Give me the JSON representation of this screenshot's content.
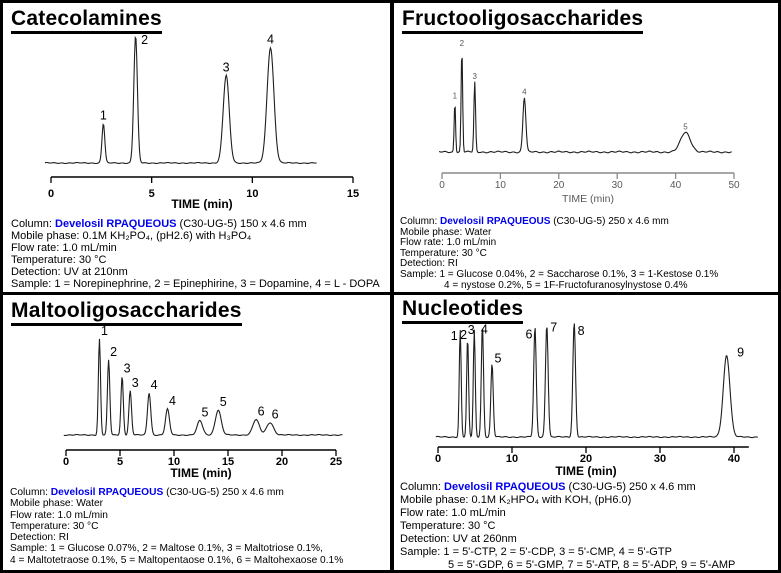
{
  "colors": {
    "brand_blue": "#0000ee",
    "text": "#000000",
    "trace": "#1f1f1f",
    "muted_axis": "#595959"
  },
  "panels": [
    {
      "title": "Catecolamines",
      "conditions": {
        "column_label": "Column: ",
        "column_brand": "Develosil RPAQUEOUS",
        "column_rest": " (C30-UG-5) 150 x 4.6 mm",
        "mobile_phase": "Mobile phase: 0.1M KH₂PO₄, (pH2.6) with H₃PO₄",
        "flow_rate": "Flow rate: 1.0 mL/min",
        "temperature": "Temperature: 30 °C",
        "detection": "Detection: UV at 210nm",
        "sample_lines": [
          "Sample: 1 = Norepinephrine, 2 = Epinephirine, 3 = Dopamine, 4 = L - DOPA"
        ]
      }
    },
    {
      "title": "Fructooligosaccharides",
      "conditions": {
        "column_label": "Column: ",
        "column_brand": "Develosil RPAQUEOUS",
        "column_rest": " (C30-UG-5) 250 x 4.6 mm",
        "mobile_phase": "Mobile phase: Water",
        "flow_rate": "Flow rate: 1.0 mL/min",
        "temperature": "Temperature: 30 °C",
        "detection": "Detection: RI",
        "sample_lines": [
          "Sample: 1 = Glucose 0.04%, 2 = Saccharose 0.1%, 3 = 1-Kestose 0.1%",
          "4 =  nystose 0.2%, 5 = 1F-Fructofuranosylnystose 0.4%"
        ]
      }
    },
    {
      "title": "Maltooligosaccharides",
      "conditions": {
        "column_label": "Column: ",
        "column_brand": "Develosil RPAQUEOUS",
        "column_rest": " (C30-UG-5) 250 x 4.6 mm",
        "mobile_phase": "Mobile phase: Water",
        "flow_rate": "Flow rate: 1.0 mL/min",
        "temperature": "Temperature: 30 °C",
        "detection": "Detection: RI",
        "sample_lines": [
          "Sample: 1 = Glucose 0.07%, 2 = Maltose 0.1%, 3 = Maltotriose 0.1%,",
          "4 = Maltotetraose 0.1%, 5 = Maltopentaose 0.1%, 6 = Maltohexaose 0.1%"
        ]
      }
    },
    {
      "title": "Nucleotides",
      "conditions": {
        "column_label": "Column: ",
        "column_brand": "Develosil RPAQUEOUS",
        "column_rest": " (C30-UG-5) 250 x 4.6 mm",
        "mobile_phase": "Mobile phase: 0.1M K₂HPO₄ with KOH, (pH6.0)",
        "flow_rate": "Flow rate: 1.0 mL/min",
        "temperature": "Temperature: 30 °C",
        "detection": "Detection: UV at 260nm",
        "sample_lines": [
          "Sample: 1 = 5'-CTP, 2 = 5'-CDP, 3 = 5'-CMP, 4 = 5'-GTP",
          "5 = 5'-GDP, 6 = 5'-GMP, 7 = 5'-ATP, 8 = 5'-ADP, 9 = 5'-AMP"
        ]
      }
    }
  ],
  "chart_data": [
    {
      "type": "line",
      "title": "Catecolamines",
      "xlabel": "TIME (min)",
      "xlim": [
        0,
        15
      ],
      "xticks": [
        0,
        5,
        10,
        15
      ],
      "grid": false,
      "legend": "none",
      "y_units": "relative detector response (unlabeled axis)",
      "peaks": [
        {
          "label": "1",
          "time": 2.6,
          "height": 0.31,
          "sigma": 0.07,
          "compound": "Norepinephrine"
        },
        {
          "label": "2",
          "time": 4.2,
          "height": 1.0,
          "sigma": 0.09,
          "compound": "Epinephirine",
          "label_dx": 9,
          "label_dy": 12
        },
        {
          "label": "3",
          "time": 8.7,
          "height": 0.69,
          "sigma": 0.15,
          "compound": "Dopamine"
        },
        {
          "label": "4",
          "time": 10.9,
          "height": 0.91,
          "sigma": 0.17,
          "compound": "L - DOPA"
        }
      ]
    },
    {
      "type": "line",
      "title": "Fructooligosaccharides",
      "xlabel": "TIME (min)",
      "xlim": [
        0,
        50
      ],
      "xticks": [
        0,
        10,
        20,
        30,
        40,
        50
      ],
      "grid": false,
      "legend": "none",
      "y_units": "relative detector response (unlabeled axis)",
      "peaks": [
        {
          "label": "1",
          "time": 2.2,
          "height": 0.49,
          "sigma": 0.12,
          "compound": "Glucose 0.04%"
        },
        {
          "label": "2",
          "time": 3.4,
          "height": 1.0,
          "sigma": 0.13,
          "compound": "Saccharose 0.1%"
        },
        {
          "label": "3",
          "time": 5.6,
          "height": 0.68,
          "sigma": 0.14,
          "compound": "1-Kestose 0.1%"
        },
        {
          "label": "4",
          "time": 14.1,
          "height": 0.53,
          "sigma": 0.25,
          "compound": "nystose 0.2%"
        },
        {
          "label": "5",
          "time": 41.7,
          "height": 0.19,
          "sigma": 0.85,
          "compound": "1F-Fructofuranosylnystose 0.4%"
        }
      ]
    },
    {
      "type": "line",
      "title": "Maltooligosaccharides",
      "xlabel": "TIME (min)",
      "xlim": [
        0,
        25
      ],
      "xticks": [
        0,
        5,
        10,
        15,
        20,
        25
      ],
      "grid": false,
      "legend": "none",
      "y_units": "relative detector response (unlabeled axis)",
      "peaks": [
        {
          "label": "1",
          "time": 3.1,
          "height": 1.0,
          "sigma": 0.1,
          "compound": "Glucose 0.07%"
        },
        {
          "label": "2",
          "time": 3.95,
          "height": 0.78,
          "sigma": 0.11,
          "compound": "Maltose 0.1%"
        },
        {
          "label": "3",
          "time": 5.2,
          "height": 0.61,
          "sigma": 0.11,
          "compound": "Maltotriose 0.1%"
        },
        {
          "label": "3",
          "time": 5.95,
          "height": 0.46,
          "sigma": 0.12,
          "compound": "Maltotriose 0.1%"
        },
        {
          "label": "4",
          "time": 7.7,
          "height": 0.44,
          "sigma": 0.15,
          "compound": "Maltotetraose 0.1%"
        },
        {
          "label": "4",
          "time": 9.4,
          "height": 0.27,
          "sigma": 0.18,
          "compound": "Maltotetraose 0.1%"
        },
        {
          "label": "5",
          "time": 12.4,
          "height": 0.15,
          "sigma": 0.25,
          "compound": "Maltopentaose 0.1%"
        },
        {
          "label": "5",
          "time": 14.1,
          "height": 0.26,
          "sigma": 0.27,
          "compound": "Maltopentaose 0.1%"
        },
        {
          "label": "6",
          "time": 17.6,
          "height": 0.16,
          "sigma": 0.3,
          "compound": "Maltohexaose 0.1%"
        },
        {
          "label": "6",
          "time": 18.9,
          "height": 0.13,
          "sigma": 0.32,
          "compound": "Maltohexaose 0.1%"
        }
      ]
    },
    {
      "type": "line",
      "title": "Nucleotides",
      "xlabel": "TIME (min)",
      "xlim": [
        0,
        40
      ],
      "xticks": [
        0,
        10,
        20,
        30,
        40
      ],
      "grid": false,
      "legend": "none",
      "y_units": "relative detector response (unlabeled axis)",
      "peaks": [
        {
          "label": "1",
          "time": 3.0,
          "height": 0.93,
          "sigma": 0.13,
          "compound": "5'-CTP",
          "label_dx": -6,
          "label_dy": 14
        },
        {
          "label": "2",
          "time": 4.0,
          "height": 0.86,
          "sigma": 0.13,
          "compound": "5'-CDP",
          "label_dx": -4,
          "label_dy": 5
        },
        {
          "label": "3",
          "time": 4.9,
          "height": 0.93,
          "sigma": 0.13,
          "compound": "5'-CMP",
          "label_dx": -3,
          "label_dy": 8
        },
        {
          "label": "4",
          "time": 6.0,
          "height": 0.97,
          "sigma": 0.15,
          "compound": "5'-GTP",
          "label_dx": 2,
          "label_dy": 12
        },
        {
          "label": "5",
          "time": 7.3,
          "height": 0.64,
          "sigma": 0.16,
          "compound": "5'-GDP",
          "label_dx": 6,
          "label_dy": 3
        },
        {
          "label": "6",
          "time": 13.1,
          "height": 0.96,
          "sigma": 0.17,
          "compound": "5'-GMP",
          "label_dx": -6,
          "label_dy": 16
        },
        {
          "label": "7",
          "time": 14.7,
          "height": 0.98,
          "sigma": 0.18,
          "compound": "5'-ATP",
          "label_dx": 7,
          "label_dy": 11
        },
        {
          "label": "8",
          "time": 18.4,
          "height": 1.0,
          "sigma": 0.18,
          "compound": "5'-ADP",
          "label_dx": 7,
          "label_dy": 17
        },
        {
          "label": "9",
          "time": 39.0,
          "height": 0.71,
          "sigma": 0.45,
          "compound": "5'-AMP",
          "label_dx": 14,
          "label_dy": 5
        }
      ]
    }
  ]
}
